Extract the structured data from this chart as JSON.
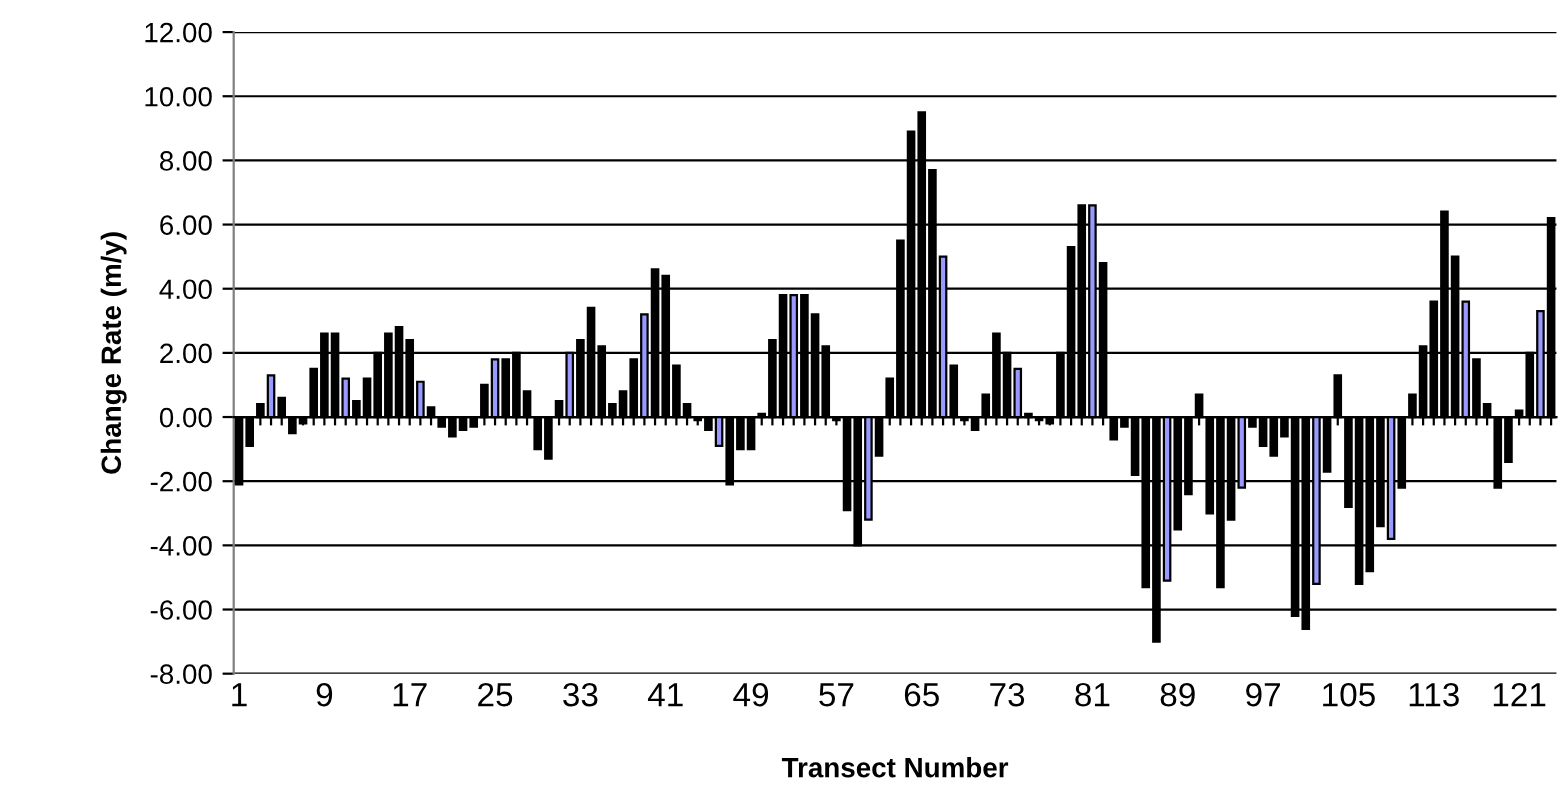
{
  "chart_data": {
    "type": "bar",
    "xlabel": "Transect Number",
    "ylabel": "Change Rate (m/y)",
    "categories": [
      "1",
      null,
      null,
      null,
      null,
      null,
      null,
      null,
      "9",
      null,
      null,
      null,
      null,
      null,
      null,
      null,
      "17",
      null,
      null,
      null,
      null,
      null,
      null,
      null,
      "25",
      null,
      null,
      null,
      null,
      null,
      null,
      null,
      "33",
      null,
      null,
      null,
      null,
      null,
      null,
      null,
      "41",
      null,
      null,
      null,
      null,
      null,
      null,
      null,
      "49",
      null,
      null,
      null,
      null,
      null,
      null,
      null,
      "57",
      null,
      null,
      null,
      null,
      null,
      null,
      null,
      "65",
      null,
      null,
      null,
      null,
      null,
      null,
      null,
      "73",
      null,
      null,
      null,
      null,
      null,
      null,
      null,
      "81",
      null,
      null,
      null,
      null,
      null,
      null,
      null,
      "89",
      null,
      null,
      null,
      null,
      null,
      null,
      null,
      "97",
      null,
      null,
      null,
      null,
      null,
      null,
      null,
      "105",
      null,
      null,
      null,
      null,
      null,
      null,
      null,
      "113",
      null,
      null,
      null,
      null,
      null,
      null,
      null,
      "121",
      null,
      null,
      null
    ],
    "values": [
      -2.1,
      -0.9,
      0.4,
      1.3,
      0.6,
      -0.5,
      -0.2,
      1.5,
      2.6,
      2.6,
      1.2,
      0.5,
      1.2,
      2.0,
      2.6,
      2.8,
      2.4,
      1.1,
      0.3,
      -0.3,
      -0.6,
      -0.4,
      -0.3,
      1.0,
      1.8,
      1.8,
      2.0,
      0.8,
      -1.0,
      -1.3,
      0.5,
      2.0,
      2.4,
      3.4,
      2.2,
      0.4,
      0.8,
      1.8,
      3.2,
      4.6,
      4.4,
      1.6,
      0.4,
      -0.1,
      -0.4,
      -0.9,
      -2.1,
      -1.0,
      -1.0,
      0.1,
      2.4,
      3.8,
      3.8,
      3.8,
      3.2,
      2.2,
      -0.1,
      -2.9,
      -4.0,
      -3.2,
      -1.2,
      1.2,
      5.5,
      8.9,
      9.5,
      7.7,
      5.0,
      1.6,
      -0.1,
      -0.4,
      0.7,
      2.6,
      2.0,
      1.5,
      0.1,
      -0.1,
      -0.2,
      2.0,
      5.3,
      6.6,
      6.6,
      4.8,
      -0.7,
      -0.3,
      -1.8,
      -5.3,
      -7.0,
      -5.1,
      -3.5,
      -2.4,
      0.7,
      -3.0,
      -5.3,
      -3.2,
      -2.2,
      -0.3,
      -0.9,
      -1.2,
      -0.6,
      -6.2,
      -6.6,
      -5.2,
      -1.7,
      1.3,
      -2.8,
      -5.2,
      -4.8,
      -3.4,
      -3.8,
      -2.2,
      0.7,
      2.2,
      3.6,
      6.4,
      5.0,
      3.6,
      1.8,
      0.4,
      -2.2,
      -1.4,
      0.2,
      2.0,
      3.3,
      6.2
    ],
    "colors": [
      "#000000",
      "#000000",
      "#000000",
      "#9999ff",
      "#000000",
      "#000000",
      "#000000",
      "#000000",
      "#000000",
      "#000000",
      "#9999ff",
      "#000000",
      "#000000",
      "#000000",
      "#000000",
      "#000000",
      "#000000",
      "#9999ff",
      "#000000",
      "#000000",
      "#000000",
      "#000000",
      "#000000",
      "#000000",
      "#9999ff",
      "#000000",
      "#000000",
      "#000000",
      "#000000",
      "#000000",
      "#000000",
      "#9999ff",
      "#000000",
      "#000000",
      "#000000",
      "#000000",
      "#000000",
      "#000000",
      "#9999ff",
      "#000000",
      "#000000",
      "#000000",
      "#000000",
      "#000000",
      "#000000",
      "#9999ff",
      "#000000",
      "#000000",
      "#000000",
      "#000000",
      "#000000",
      "#000000",
      "#9999ff",
      "#000000",
      "#000000",
      "#000000",
      "#000000",
      "#000000",
      "#000000",
      "#9999ff",
      "#000000",
      "#000000",
      "#000000",
      "#000000",
      "#000000",
      "#000000",
      "#9999ff",
      "#000000",
      "#000000",
      "#000000",
      "#000000",
      "#000000",
      "#000000",
      "#9999ff",
      "#000000",
      "#000000",
      "#000000",
      "#000000",
      "#000000",
      "#000000",
      "#9999ff",
      "#000000",
      "#000000",
      "#000000",
      "#000000",
      "#000000",
      "#000000",
      "#9999ff",
      "#000000",
      "#000000",
      "#000000",
      "#000000",
      "#000000",
      "#000000",
      "#9999ff",
      "#000000",
      "#000000",
      "#000000",
      "#000000",
      "#000000",
      "#000000",
      "#9999ff",
      "#000000",
      "#000000",
      "#000000",
      "#000000",
      "#000000",
      "#000000",
      "#9999ff",
      "#000000",
      "#000000",
      "#000000",
      "#000000",
      "#000000",
      "#000000",
      "#9999ff",
      "#000000",
      "#000000",
      "#000000",
      "#000000",
      "#000000",
      "#000000",
      "#9999ff",
      "#000000"
    ],
    "ylim": [
      -8,
      12
    ],
    "yticks": [
      {
        "value": -8,
        "label": "-8.00"
      },
      {
        "value": -6,
        "label": "-6.00"
      },
      {
        "value": -4,
        "label": "-4.00"
      },
      {
        "value": -2,
        "label": "-2.00"
      },
      {
        "value": 0,
        "label": "0.00"
      },
      {
        "value": 2,
        "label": "2.00"
      },
      {
        "value": 4,
        "label": "4.00"
      },
      {
        "value": 6,
        "label": "6.00"
      },
      {
        "value": 8,
        "label": "8.00"
      },
      {
        "value": 10,
        "label": "10.00"
      },
      {
        "value": 12,
        "label": "12.00"
      }
    ],
    "grid": "y"
  }
}
